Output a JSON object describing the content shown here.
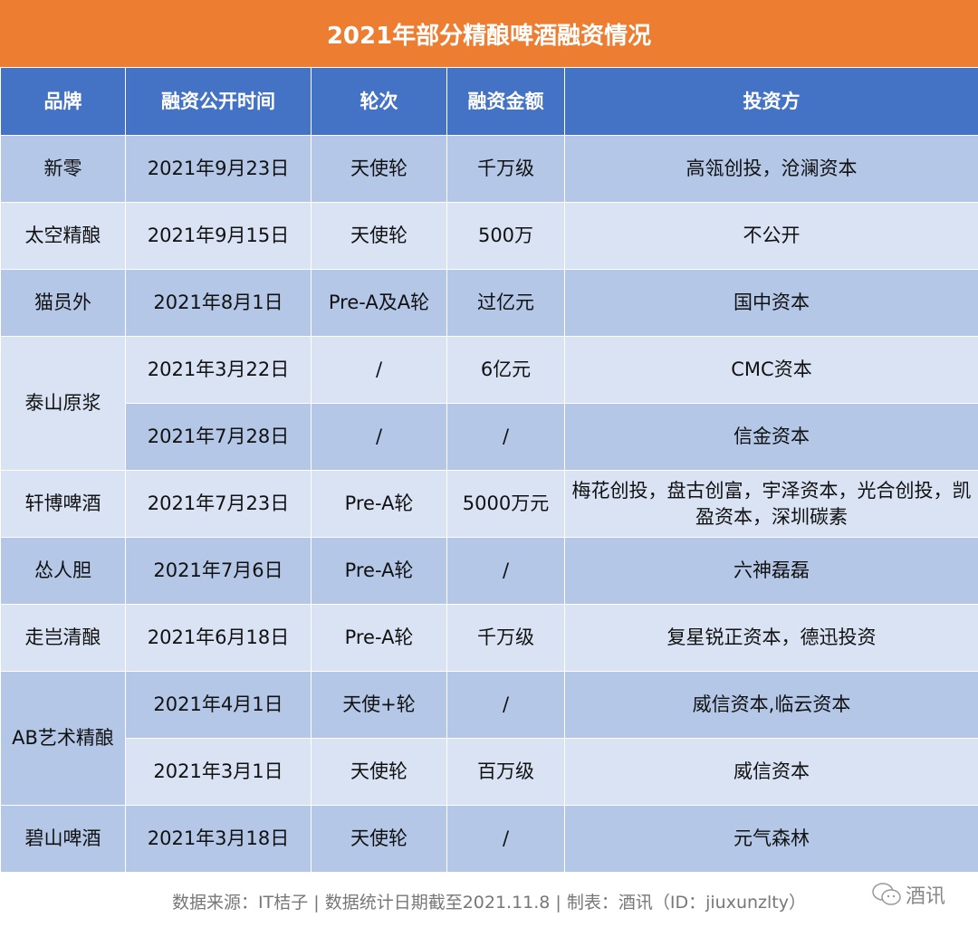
{
  "title": "2021年部分精酿啤酒融资情况",
  "colors": {
    "title_bg": "#ED7D31",
    "header_bg": "#4472C4",
    "row_dark": "#B4C7E7",
    "row_light": "#DAE3F3"
  },
  "headers": [
    "品牌",
    "融资公开时间",
    "轮次",
    "融资金额",
    "投资方"
  ],
  "rows": [
    {
      "brand": "新零",
      "date": "2021年9月23日",
      "round": "天使轮",
      "amount": "千万级",
      "investors": "高瓴创投，沧澜资本"
    },
    {
      "brand": "太空精酿",
      "date": "2021年9月15日",
      "round": "天使轮",
      "amount": "500万",
      "investors": "不公开"
    },
    {
      "brand": "猫员外",
      "date": "2021年8月1日",
      "round": "Pre-A及A轮",
      "amount": "过亿元",
      "investors": "国中资本"
    },
    {
      "brand": "泰山原浆",
      "date": "2021年3月22日",
      "round": "/",
      "amount": "6亿元",
      "investors": "CMC资本"
    },
    {
      "brand": "",
      "date": "2021年7月28日",
      "round": "/",
      "amount": "/",
      "investors": "信金资本"
    },
    {
      "brand": "轩博啤酒",
      "date": "2021年7月23日",
      "round": "Pre-A轮",
      "amount": "5000万元",
      "investors": "梅花创投，盘古创富，宇泽资本，光合创投，凯盈资本，深圳碳素"
    },
    {
      "brand": "怂人胆",
      "date": "2021年7月6日",
      "round": "Pre-A轮",
      "amount": "/",
      "investors": "六神磊磊"
    },
    {
      "brand": "走岂清酿",
      "date": "2021年6月18日",
      "round": "Pre-A轮",
      "amount": "千万级",
      "investors": "复星锐正资本，德迅投资"
    },
    {
      "brand": "AB艺术精酿",
      "date": "2021年4月1日",
      "round": "天使+轮",
      "amount": "/",
      "investors": "威信资本,临云资本"
    },
    {
      "brand": "",
      "date": "2021年3月1日",
      "round": "天使轮",
      "amount": "百万级",
      "investors": "威信资本"
    },
    {
      "brand": "碧山啤酒",
      "date": "2021年3月18日",
      "round": "天使轮",
      "amount": "/",
      "investors": "元气森林"
    }
  ],
  "footer": "数据来源：IT桔子 | 数据统计日期截至2021.11.8 | 制表：酒讯（ID：jiuxunzlty）",
  "logo": {
    "icon": "wechat-icon",
    "text": "酒讯"
  }
}
